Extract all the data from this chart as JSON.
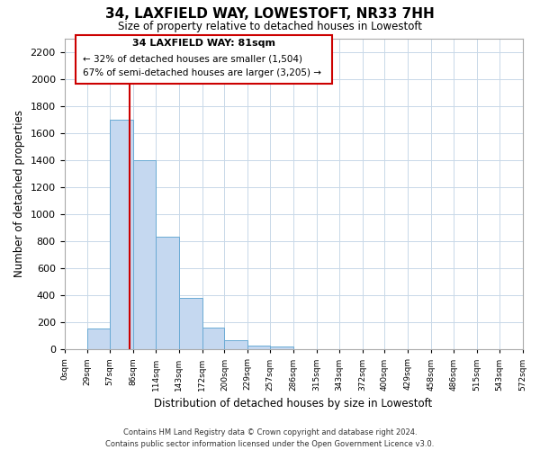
{
  "title": "34, LAXFIELD WAY, LOWESTOFT, NR33 7HH",
  "subtitle": "Size of property relative to detached houses in Lowestoft",
  "xlabel": "Distribution of detached houses by size in Lowestoft",
  "ylabel": "Number of detached properties",
  "bar_edges": [
    0,
    29,
    57,
    86,
    114,
    143,
    172,
    200,
    229,
    257,
    286,
    315,
    343,
    372,
    400,
    429,
    458,
    486,
    515,
    543,
    572
  ],
  "bar_heights": [
    0,
    155,
    1700,
    1400,
    830,
    380,
    160,
    65,
    30,
    20,
    0,
    0,
    0,
    0,
    0,
    0,
    0,
    0,
    0,
    0
  ],
  "bar_color": "#c5d8f0",
  "bar_edgecolor": "#6aaad4",
  "property_line_x": 81,
  "property_line_color": "#cc0000",
  "ylim": [
    0,
    2300
  ],
  "yticks": [
    0,
    200,
    400,
    600,
    800,
    1000,
    1200,
    1400,
    1600,
    1800,
    2000,
    2200
  ],
  "xtick_labels": [
    "0sqm",
    "29sqm",
    "57sqm",
    "86sqm",
    "114sqm",
    "143sqm",
    "172sqm",
    "200sqm",
    "229sqm",
    "257sqm",
    "286sqm",
    "315sqm",
    "343sqm",
    "372sqm",
    "400sqm",
    "429sqm",
    "458sqm",
    "486sqm",
    "515sqm",
    "543sqm",
    "572sqm"
  ],
  "annotation_title": "34 LAXFIELD WAY: 81sqm",
  "annotation_line1": "← 32% of detached houses are smaller (1,504)",
  "annotation_line2": "67% of semi-detached houses are larger (3,205) →",
  "footer_line1": "Contains HM Land Registry data © Crown copyright and database right 2024.",
  "footer_line2": "Contains public sector information licensed under the Open Government Licence v3.0.",
  "background_color": "#ffffff",
  "grid_color": "#c8d8e8"
}
